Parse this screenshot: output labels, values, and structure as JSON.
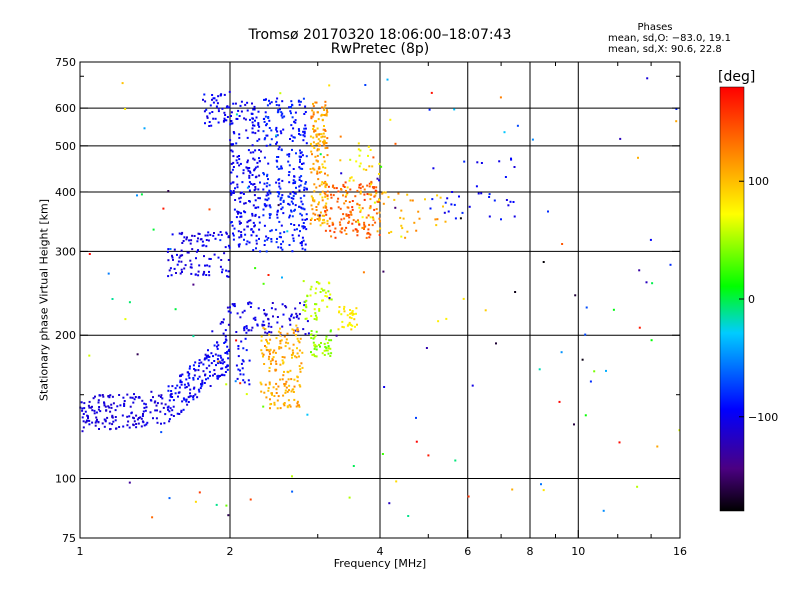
{
  "header": {
    "title": "Tromsø 20170320 18:06:00–18:07:43",
    "subtitle": "RwPretec (8p)"
  },
  "stats": {
    "title": "Phases",
    "line1": "mean, sd,O: −83.0, 19.1",
    "line2": "mean, sd,X:  90.6, 22.8"
  },
  "colorbar": {
    "unit": "[deg]",
    "ticks": [
      "100",
      "0",
      "−100"
    ],
    "tick_values": [
      100,
      0,
      -100
    ],
    "range": [
      -180,
      180
    ]
  },
  "chart_data": {
    "type": "scatter",
    "xlabel": "Frequency [MHz]",
    "ylabel": "Stationary phase Virtual Height [km]",
    "xscale": "log",
    "yscale": "log",
    "xlim": [
      1,
      16
    ],
    "ylim": [
      75,
      750
    ],
    "xticks": [
      1,
      2,
      4,
      6,
      8,
      10,
      16
    ],
    "xtick_labels": [
      "1",
      "2",
      "4",
      "6",
      "8",
      "10",
      "16"
    ],
    "yticks": [
      75,
      100,
      200,
      300,
      400,
      500,
      600,
      750
    ],
    "ytick_labels": [
      "75",
      "100",
      "200",
      "300",
      "400",
      "500",
      "600",
      "750"
    ],
    "x_minor_ticks": [
      3,
      5,
      7,
      9,
      12,
      14
    ],
    "y_minor_ticks": [
      150,
      700
    ],
    "grid": true,
    "color_by": "phase [deg]",
    "clusters": [
      {
        "x": [
          1.0,
          1.5
        ],
        "y": [
          125,
          160
        ],
        "n": 170,
        "phase": [
          -115,
          -100
        ],
        "shape": "lowtrace"
      },
      {
        "x": [
          1.5,
          2.0
        ],
        "y": [
          130,
          200
        ],
        "n": 180,
        "phase": [
          -110,
          -85
        ],
        "shape": "rising"
      },
      {
        "x": [
          1.5,
          2.0
        ],
        "y": [
          265,
          330
        ],
        "n": 110,
        "phase": [
          -115,
          -95
        ],
        "shape": "band"
      },
      {
        "x": [
          1.75,
          2.0
        ],
        "y": [
          550,
          650
        ],
        "n": 45,
        "phase": [
          -110,
          -85
        ],
        "shape": "blob"
      },
      {
        "x": [
          2.0,
          2.3
        ],
        "y": [
          300,
          620
        ],
        "n": 210,
        "phase": [
          -110,
          -85
        ],
        "shape": "blob"
      },
      {
        "x": [
          2.3,
          2.9
        ],
        "y": [
          300,
          630
        ],
        "n": 300,
        "phase": [
          -100,
          -75
        ],
        "shape": "columns"
      },
      {
        "x": [
          1.9,
          2.9
        ],
        "y": [
          200,
          235
        ],
        "n": 90,
        "phase": [
          -115,
          -95
        ],
        "shape": "band"
      },
      {
        "x": [
          2.05,
          2.2
        ],
        "y": [
          155,
          210
        ],
        "n": 25,
        "phase": [
          -105,
          -85
        ],
        "shape": "blob"
      },
      {
        "x": [
          2.9,
          3.15
        ],
        "y": [
          340,
          620
        ],
        "n": 170,
        "phase": [
          85,
          135
        ],
        "shape": "blob"
      },
      {
        "x": [
          2.8,
          3.2
        ],
        "y": [
          215,
          260
        ],
        "n": 50,
        "phase": [
          40,
          70
        ],
        "shape": "blob"
      },
      {
        "x": [
          2.9,
          3.2
        ],
        "y": [
          180,
          205
        ],
        "n": 45,
        "phase": [
          30,
          60
        ],
        "shape": "blob"
      },
      {
        "x": [
          3.3,
          3.6
        ],
        "y": [
          205,
          230
        ],
        "n": 35,
        "phase": [
          65,
          95
        ],
        "shape": "blob"
      },
      {
        "x": [
          2.3,
          2.8
        ],
        "y": [
          140,
          210
        ],
        "n": 170,
        "phase": [
          90,
          125
        ],
        "shape": "blob"
      },
      {
        "x": [
          3.1,
          4.0
        ],
        "y": [
          320,
          420
        ],
        "n": 150,
        "phase": [
          120,
          160
        ],
        "shape": "blob"
      },
      {
        "x": [
          3.4,
          4.0
        ],
        "y": [
          340,
          510
        ],
        "n": 35,
        "phase": [
          60,
          110
        ],
        "shape": "blob"
      },
      {
        "x": [
          3.8,
          5.5
        ],
        "y": [
          320,
          400
        ],
        "n": 40,
        "phase": [
          90,
          125
        ],
        "shape": "blob"
      },
      {
        "x": [
          5.0,
          7.5
        ],
        "y": [
          350,
          480
        ],
        "n": 35,
        "phase": [
          -110,
          -80
        ],
        "shape": "scatter"
      },
      {
        "x": [
          1.0,
          16.0
        ],
        "y": [
          80,
          700
        ],
        "n": 140,
        "phase": [
          -180,
          180
        ],
        "shape": "scatter"
      }
    ]
  }
}
